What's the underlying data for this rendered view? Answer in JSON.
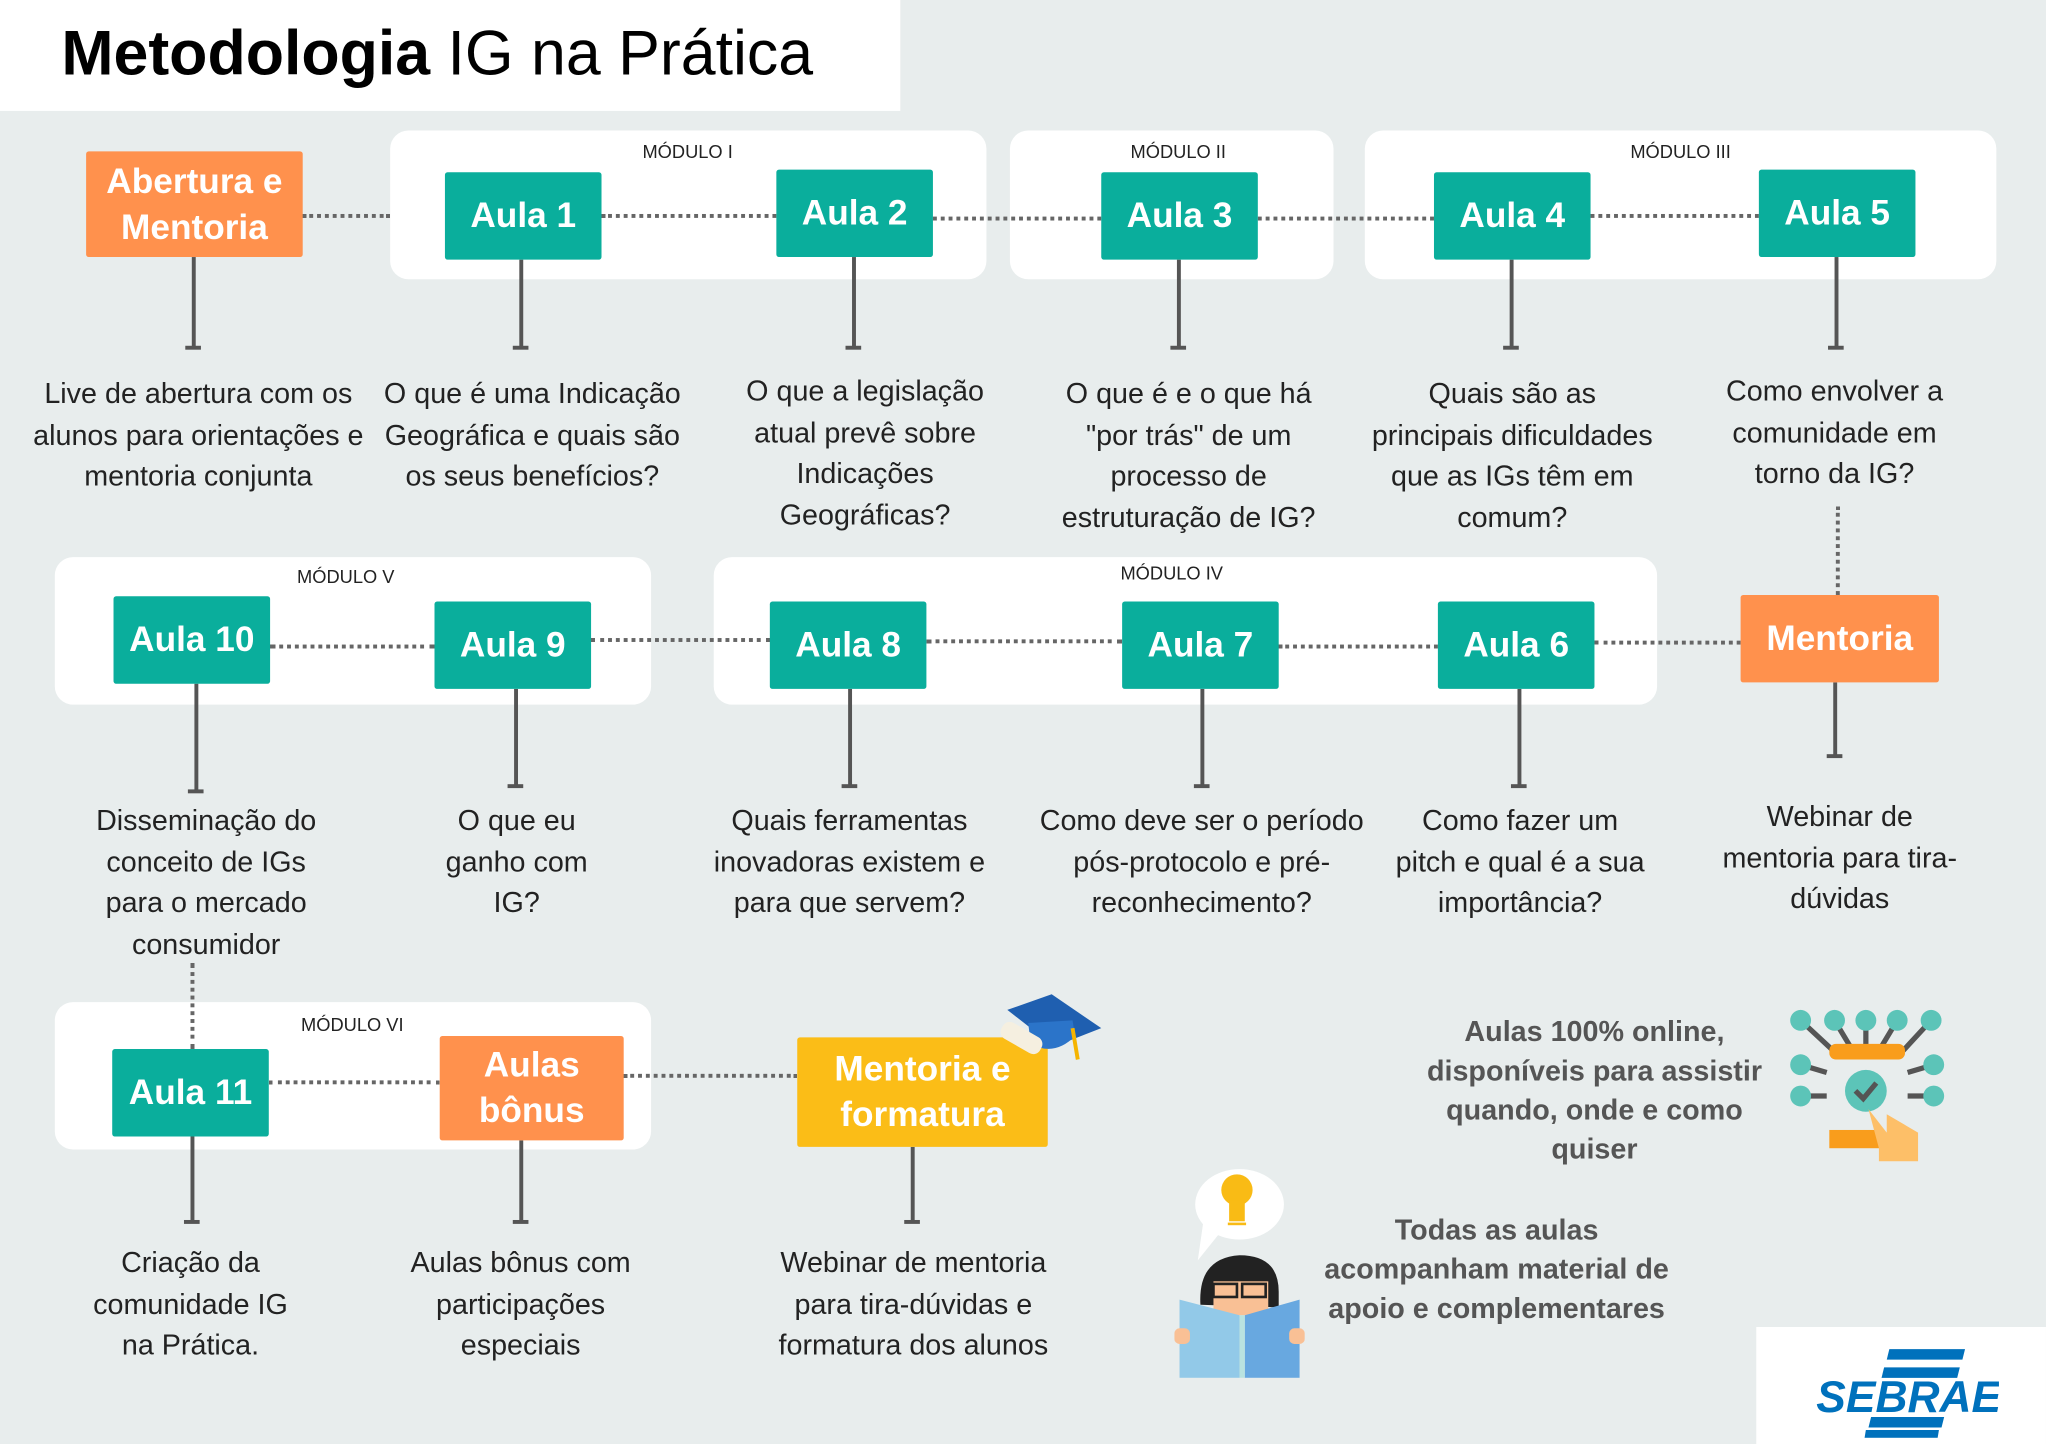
{
  "header": {
    "title_bold": "Metodologia",
    "title_light": "IG na Prática"
  },
  "colors": {
    "teal": "#0aae9c",
    "orange": "#ff914d",
    "yellow": "#fbbd17",
    "background": "#e8eded",
    "sebrae_blue": "#0071bc"
  },
  "modules": [
    "MÓDULO I",
    "MÓDULO II",
    "MÓDULO III",
    "MÓDULO IV",
    "MÓDULO V",
    "MÓDULO VI"
  ],
  "steps": {
    "abertura": {
      "label": "Abertura e Mentoria",
      "desc": "Live de abertura com os alunos para orientações e mentoria conjunta"
    },
    "aula1": {
      "label": "Aula 1",
      "desc": "O que é uma Indicação Geográfica e quais são os seus benefícios?"
    },
    "aula2": {
      "label": "Aula 2",
      "desc": "O que a legislação atual prevê sobre Indicações Geográficas?"
    },
    "aula3": {
      "label": "Aula 3",
      "desc": "O que é e o que há \"por trás\" de um processo de estruturação de IG?"
    },
    "aula4": {
      "label": "Aula 4",
      "desc": "Quais são as principais dificuldades que as IGs têm em comum?"
    },
    "aula5": {
      "label": "Aula 5",
      "desc": "Como envolver a comunidade em torno da IG?"
    },
    "mentoria": {
      "label": "Mentoria",
      "desc": "Webinar de mentoria para tira-dúvidas"
    },
    "aula6": {
      "label": "Aula 6",
      "desc": "Como fazer um pitch e qual é a sua importância?"
    },
    "aula7": {
      "label": "Aula 7",
      "desc": "Como deve ser o período pós-protocolo e pré-reconhecimento?"
    },
    "aula8": {
      "label": "Aula 8",
      "desc": "Quais ferramentas inovadoras existem e para que servem?"
    },
    "aula9": {
      "label": "Aula 9",
      "desc": "O que eu ganho com IG?"
    },
    "aula10": {
      "label": "Aula 10",
      "desc": "Disseminação do conceito de IGs para o mercado consumidor"
    },
    "aula11": {
      "label": "Aula 11",
      "desc": "Criação da comunidade IG na Prática."
    },
    "bonus": {
      "label": "Aulas bônus",
      "desc": "Aulas bônus com participações especiais"
    },
    "formatura": {
      "label": "Mentoria e formatura",
      "desc": "Webinar de mentoria para tira-dúvidas e formatura dos alunos"
    }
  },
  "notes": {
    "online": "Aulas 100% online, disponíveis para assistir quando, onde e como quiser",
    "material": "Todas as aulas acompanham material de apoio e complementares"
  },
  "icons": [
    "graduation-cap-icon",
    "online-touch-icon",
    "student-reading-icon",
    "lightbulb-icon"
  ],
  "logo": {
    "text": "SEBRAE"
  }
}
